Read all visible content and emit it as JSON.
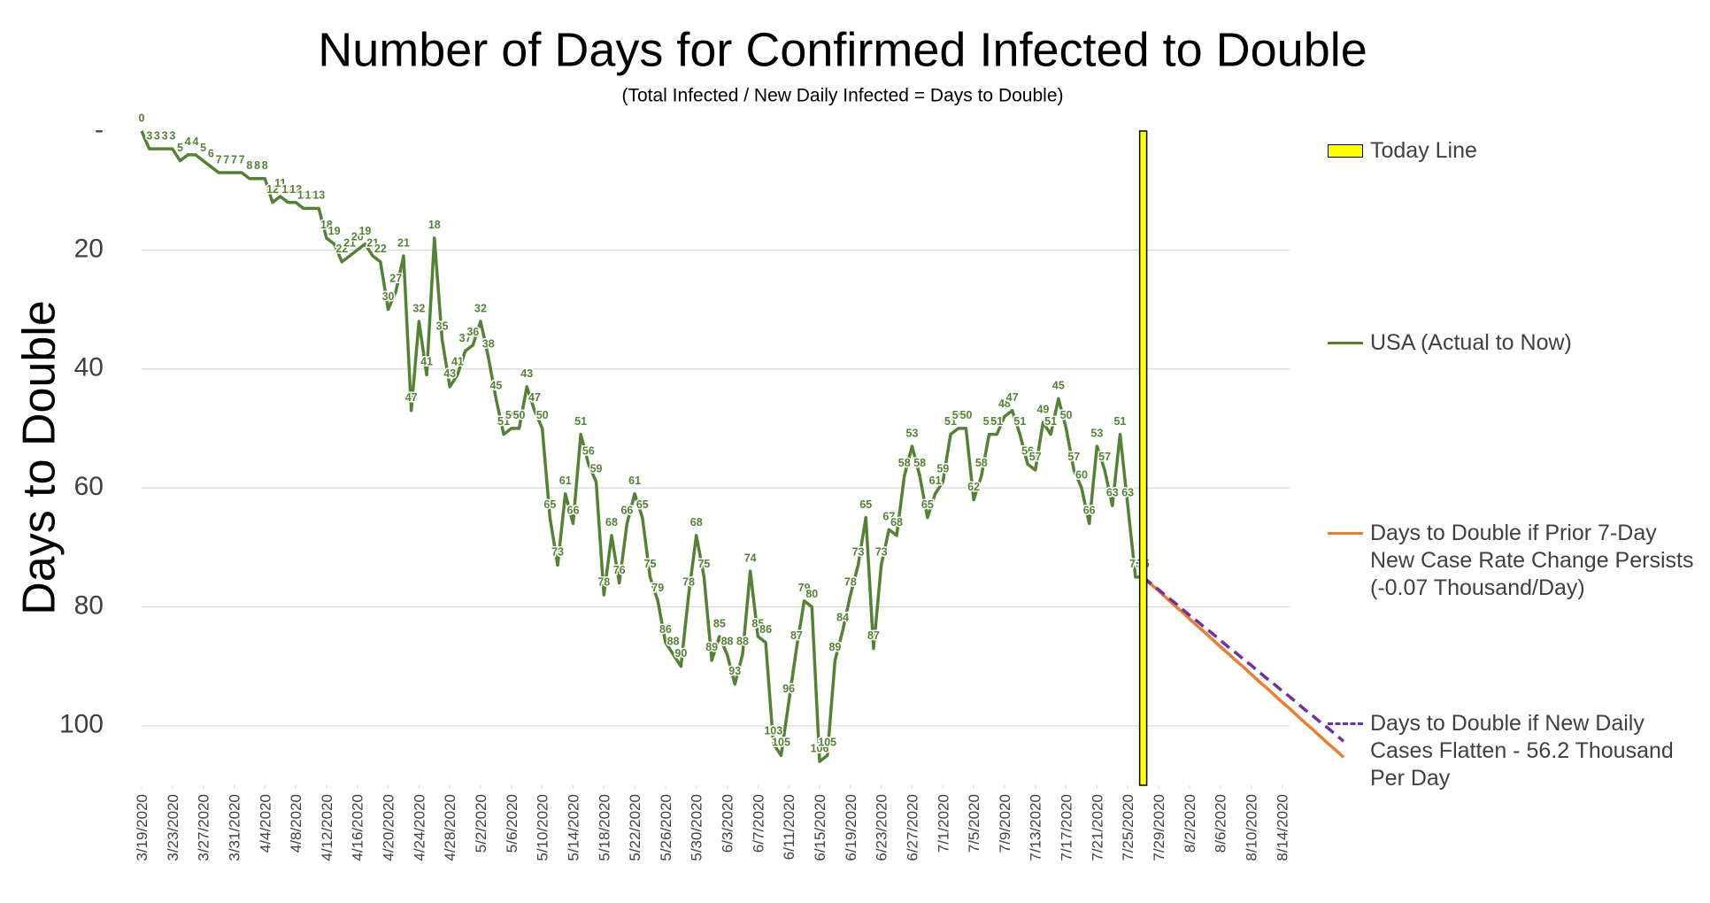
{
  "chart_data": {
    "type": "line",
    "title": "Number of Days for Confirmed Infected to Double",
    "subtitle": "(Total Infected / New Daily Infected = Days to Double)",
    "y_label": "Days to Double",
    "ylim": [
      0,
      110
    ],
    "y_inverted": true,
    "yticks": [
      {
        "value": 0,
        "label": "-"
      },
      20,
      40,
      60,
      80,
      100
    ],
    "grid": true,
    "xlim": [
      0,
      149
    ],
    "xticks": [
      {
        "value": 0,
        "label": "3/19/2020"
      },
      {
        "value": 4,
        "label": "3/23/2020"
      },
      {
        "value": 8,
        "label": "3/27/2020"
      },
      {
        "value": 12,
        "label": "3/31/2020"
      },
      {
        "value": 16,
        "label": "4/4/2020"
      },
      {
        "value": 20,
        "label": "4/8/2020"
      },
      {
        "value": 24,
        "label": "4/12/2020"
      },
      {
        "value": 28,
        "label": "4/16/2020"
      },
      {
        "value": 32,
        "label": "4/20/2020"
      },
      {
        "value": 36,
        "label": "4/24/2020"
      },
      {
        "value": 40,
        "label": "4/28/2020"
      },
      {
        "value": 44,
        "label": "5/2/2020"
      },
      {
        "value": 48,
        "label": "5/6/2020"
      },
      {
        "value": 52,
        "label": "5/10/2020"
      },
      {
        "value": 56,
        "label": "5/14/2020"
      },
      {
        "value": 60,
        "label": "5/18/2020"
      },
      {
        "value": 64,
        "label": "5/22/2020"
      },
      {
        "value": 68,
        "label": "5/26/2020"
      },
      {
        "value": 72,
        "label": "5/30/2020"
      },
      {
        "value": 76,
        "label": "6/3/2020"
      },
      {
        "value": 80,
        "label": "6/7/2020"
      },
      {
        "value": 84,
        "label": "6/11/2020"
      },
      {
        "value": 88,
        "label": "6/15/2020"
      },
      {
        "value": 92,
        "label": "6/19/2020"
      },
      {
        "value": 96,
        "label": "6/23/2020"
      },
      {
        "value": 100,
        "label": "6/27/2020"
      },
      {
        "value": 104,
        "label": "7/1/2020"
      },
      {
        "value": 108,
        "label": "7/5/2020"
      },
      {
        "value": 112,
        "label": "7/9/2020"
      },
      {
        "value": 116,
        "label": "7/13/2020"
      },
      {
        "value": 120,
        "label": "7/17/2020"
      },
      {
        "value": 124,
        "label": "7/21/2020"
      },
      {
        "value": 128,
        "label": "7/25/2020"
      },
      {
        "value": 132,
        "label": "7/29/2020"
      },
      {
        "value": 136,
        "label": "8/2/2020"
      },
      {
        "value": 140,
        "label": "8/6/2020"
      },
      {
        "value": 144,
        "label": "8/10/2020"
      },
      {
        "value": 148,
        "label": "8/14/2020"
      }
    ],
    "today_line": {
      "name": "Today Line",
      "x": 130,
      "color": "#ffff00"
    },
    "series": [
      {
        "name": "USA (Actual to Now)",
        "color": "#548235",
        "data_labels": true,
        "x": [
          0,
          1,
          2,
          3,
          4,
          5,
          6,
          7,
          8,
          9,
          10,
          11,
          12,
          13,
          14,
          15,
          16,
          17,
          18,
          19,
          20,
          21,
          22,
          23,
          24,
          25,
          26,
          27,
          28,
          29,
          30,
          31,
          32,
          33,
          34,
          35,
          36,
          37,
          38,
          39,
          40,
          41,
          42,
          43,
          44,
          45,
          46,
          47,
          48,
          49,
          50,
          51,
          52,
          53,
          54,
          55,
          56,
          57,
          58,
          59,
          60,
          61,
          62,
          63,
          64,
          65,
          66,
          67,
          68,
          69,
          70,
          71,
          72,
          73,
          74,
          75,
          76,
          77,
          78,
          79,
          80,
          81,
          82,
          83,
          84,
          85,
          86,
          87,
          88,
          89,
          90,
          91,
          92,
          93,
          94,
          95,
          96,
          97,
          98,
          99,
          100,
          101,
          102,
          103,
          104,
          105,
          106,
          107,
          108,
          109,
          110,
          111,
          112,
          113,
          114,
          115,
          116,
          117,
          118,
          119,
          120,
          121,
          122,
          123,
          124,
          125,
          126,
          127,
          128,
          129,
          130
        ],
        "values": [
          0,
          3,
          3,
          3,
          3,
          5,
          4,
          4,
          5,
          6,
          7,
          7,
          7,
          7,
          8,
          8,
          8,
          12,
          11,
          12,
          12,
          13,
          13,
          13,
          18,
          19,
          22,
          21,
          20,
          19,
          21,
          22,
          30,
          27,
          21,
          47,
          32,
          41,
          18,
          35,
          43,
          41,
          37,
          36,
          32,
          38,
          45,
          51,
          50,
          50,
          43,
          47,
          50,
          65,
          73,
          61,
          66,
          51,
          56,
          59,
          78,
          68,
          76,
          66,
          61,
          65,
          75,
          79,
          86,
          88,
          90,
          78,
          68,
          75,
          89,
          85,
          88,
          93,
          88,
          74,
          85,
          86,
          103,
          105,
          96,
          87,
          79,
          80,
          106,
          105,
          89,
          84,
          78,
          73,
          65,
          87,
          73,
          67,
          68,
          58,
          53,
          58,
          65,
          61,
          59,
          51,
          50,
          50,
          62,
          58,
          51,
          51,
          48,
          47,
          51,
          56,
          57,
          49,
          51,
          45,
          50,
          57,
          60,
          66,
          53,
          57,
          63,
          51,
          63,
          75,
          75
        ]
      },
      {
        "name": "Days to Double if Prior 7-Day New Case Rate Change Persists (-0.07 Thousand/Day)",
        "color": "#ed7d31",
        "x": [
          130,
          131,
          132,
          133,
          134,
          135,
          136,
          137,
          138,
          139,
          140,
          141,
          142,
          143,
          144,
          145,
          146,
          147,
          148,
          149,
          150,
          151,
          152,
          153,
          154,
          155,
          156
        ],
        "values": [
          75,
          76.2,
          77.3,
          78.5,
          79.7,
          80.8,
          82.0,
          83.2,
          84.3,
          85.5,
          86.7,
          87.8,
          89.0,
          90.1,
          91.3,
          92.5,
          93.6,
          94.8,
          96.0,
          97.1,
          98.3,
          99.5,
          100.6,
          101.8,
          103.0,
          104.1,
          105.3
        ]
      },
      {
        "name": "Days to Double if New Daily Cases Flatten - 56.2 Thousand Per Day",
        "color": "#7030a0",
        "dash": true,
        "x": [
          130,
          131,
          132,
          133,
          134,
          135,
          136,
          137,
          138,
          139,
          140,
          141,
          142,
          143,
          144,
          145,
          146,
          147,
          148,
          149,
          150,
          151,
          152,
          153,
          154,
          155,
          156
        ],
        "values": [
          75,
          76.1,
          77.1,
          78.2,
          79.2,
          80.3,
          81.4,
          82.4,
          83.5,
          84.5,
          85.6,
          86.7,
          87.7,
          88.8,
          89.8,
          90.9,
          92.0,
          93.0,
          94.1,
          95.1,
          96.2,
          97.3,
          98.3,
          99.4,
          100.4,
          101.5,
          102.6
        ]
      }
    ]
  }
}
